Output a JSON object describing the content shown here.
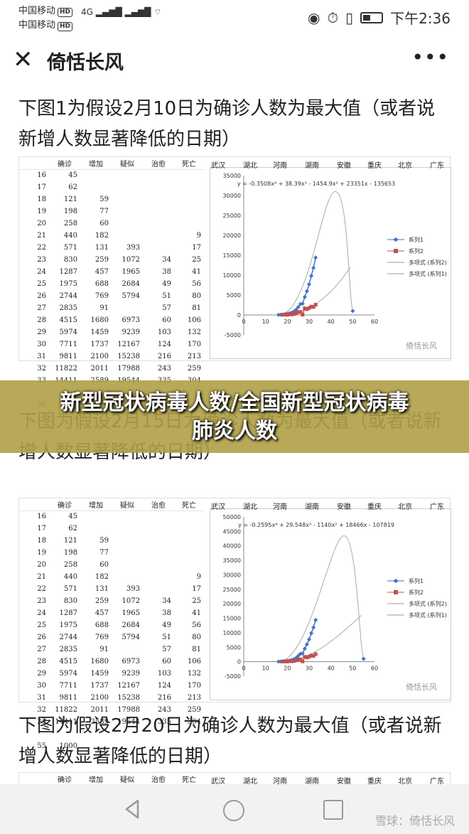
{
  "status": {
    "carrier1": "中国移动",
    "carrier2": "中国移动",
    "hd": "HD",
    "network": "4G",
    "time": "下午2:36"
  },
  "titlebar": {
    "close_glyph": "✕",
    "title": "倚恬长风",
    "more_glyph": "•••"
  },
  "headings": [
    "下图1为假设2月10日为确诊人数为最大值（或者说新增人数显著降低的日期）",
    "下图为假设2月15日为确诊人数为最大值（或者说新增人数显著降低的日期）",
    "下图为假设2月20日为确诊人数为最大值（或者说新增人数显著降低的日期）"
  ],
  "banner": {
    "line1": "新型冠状病毒人数/全国新型冠状病毒",
    "line2": "肺炎人数"
  },
  "sheet": {
    "headers": [
      "确诊",
      "增加",
      "疑似",
      "治愈",
      "死亡"
    ],
    "regions": [
      "武汉",
      "湖北",
      "河南",
      "湖南",
      "安徽",
      "重庆",
      "北京",
      "广东"
    ],
    "rows": [
      [
        "16",
        "45",
        "",
        "",
        "",
        ""
      ],
      [
        "17",
        "62",
        "",
        "",
        "",
        ""
      ],
      [
        "18",
        "121",
        "59",
        "",
        "",
        ""
      ],
      [
        "19",
        "198",
        "77",
        "",
        "",
        ""
      ],
      [
        "20",
        "258",
        "60",
        "",
        "",
        ""
      ],
      [
        "21",
        "440",
        "182",
        "",
        "",
        "9"
      ],
      [
        "22",
        "571",
        "131",
        "393",
        "",
        "17"
      ],
      [
        "23",
        "830",
        "259",
        "1072",
        "34",
        "25"
      ],
      [
        "24",
        "1287",
        "457",
        "1965",
        "38",
        "41"
      ],
      [
        "25",
        "1975",
        "688",
        "2684",
        "49",
        "56"
      ],
      [
        "26",
        "2744",
        "769",
        "5794",
        "51",
        "80"
      ],
      [
        "27",
        "2835",
        "91",
        "",
        "57",
        "81"
      ],
      [
        "28",
        "4515",
        "1680",
        "6973",
        "60",
        "106"
      ],
      [
        "29",
        "5974",
        "1459",
        "9239",
        "103",
        "132"
      ],
      [
        "30",
        "7711",
        "1737",
        "12167",
        "124",
        "170"
      ],
      [
        "31",
        "9811",
        "2100",
        "15238",
        "216",
        "213"
      ],
      [
        "32",
        "11822",
        "2011",
        "17988",
        "243",
        "259"
      ],
      [
        "33",
        "14411",
        "2589",
        "19544",
        "335",
        "304"
      ]
    ],
    "extra_row_1": [
      "50",
      "1000"
    ],
    "extra_row_2": [
      "55",
      "1000"
    ]
  },
  "chart_data": [
    {
      "type": "scatter",
      "equation": "y = -0.3508x⁴ + 38.39x³ - 1454.9x² + 23351x - 135653",
      "ylim": [
        -5000,
        35000
      ],
      "yticks": [
        "35000",
        "30000",
        "25000",
        "20000",
        "15000",
        "10000",
        "5000",
        "0",
        "-5000"
      ],
      "xlim": [
        0,
        60
      ],
      "xticks": [
        "0",
        "10",
        "20",
        "30",
        "40",
        "50",
        "60"
      ],
      "legend": [
        "系列1",
        "系列2",
        "多项式 (系列2)",
        "多项式 (系列1)"
      ],
      "watermark": "倚恬长风",
      "series1": {
        "x": [
          16,
          17,
          18,
          19,
          20,
          21,
          22,
          23,
          24,
          25,
          26,
          27,
          28,
          29,
          30,
          31,
          32,
          33,
          50
        ],
        "y": [
          45,
          62,
          121,
          198,
          258,
          440,
          571,
          830,
          1287,
          1975,
          2744,
          2835,
          4515,
          5974,
          7711,
          9811,
          11822,
          14411,
          1000
        ]
      },
      "series2": {
        "x": [
          18,
          19,
          20,
          21,
          22,
          23,
          24,
          25,
          26,
          27,
          28,
          29,
          30,
          31,
          32,
          33
        ],
        "y": [
          59,
          77,
          60,
          182,
          131,
          259,
          457,
          688,
          769,
          91,
          1680,
          1459,
          1737,
          2100,
          2011,
          2589
        ]
      },
      "poly1_peak": {
        "x": 42,
        "y": 31000
      },
      "poly2_end": {
        "x": 49,
        "y": 12000
      }
    },
    {
      "type": "scatter",
      "equation": "y = -0.2595x⁴ + 29.548x³ - 1140x² + 18466x - 107819",
      "ylim": [
        -5000,
        50000
      ],
      "yticks": [
        "50000",
        "45000",
        "40000",
        "35000",
        "30000",
        "25000",
        "20000",
        "15000",
        "10000",
        "5000",
        "0",
        "-5000"
      ],
      "xlim": [
        0,
        60
      ],
      "xticks": [
        "0",
        "10",
        "20",
        "30",
        "40",
        "50",
        "60"
      ],
      "legend": [
        "系列1",
        "系列2",
        "多项式 (系列2)",
        "多项式 (系列1)"
      ],
      "watermark": "倚恬长风",
      "series1": {
        "x": [
          16,
          17,
          18,
          19,
          20,
          21,
          22,
          23,
          24,
          25,
          26,
          27,
          28,
          29,
          30,
          31,
          32,
          33,
          55
        ],
        "y": [
          45,
          62,
          121,
          198,
          258,
          440,
          571,
          830,
          1287,
          1975,
          2744,
          2835,
          4515,
          5974,
          7711,
          9811,
          11822,
          14411,
          1000
        ]
      },
      "series2": {
        "x": [
          18,
          19,
          20,
          21,
          22,
          23,
          24,
          25,
          26,
          27,
          28,
          29,
          30,
          31,
          32,
          33
        ],
        "y": [
          59,
          77,
          60,
          182,
          131,
          259,
          457,
          688,
          769,
          91,
          1680,
          1459,
          1737,
          2100,
          2011,
          2589
        ]
      },
      "poly1_peak": {
        "x": 46,
        "y": 43500
      },
      "poly2_end": {
        "x": 54,
        "y": 16000
      }
    }
  ],
  "footer_watermark": "雪球：倚恬长风",
  "colors": {
    "series1": "#4472c4",
    "series2": "#c0504d",
    "banner": "#afa046",
    "trend": "#bbbbbb"
  }
}
